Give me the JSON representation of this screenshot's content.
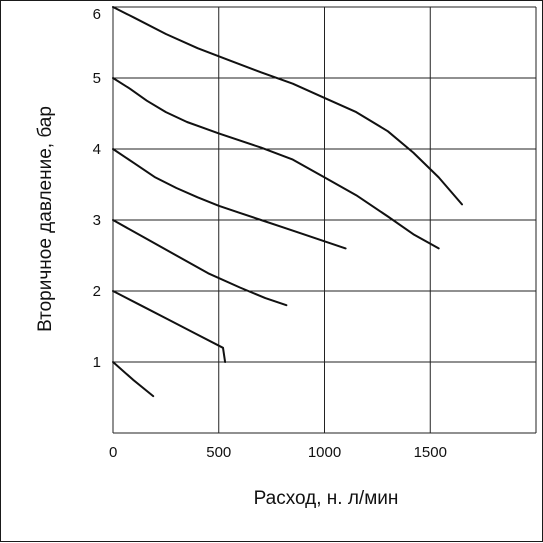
{
  "chart_data": {
    "type": "line",
    "title": "",
    "xlabel": "Расход, н. л/мин",
    "ylabel": "Вторичное давление, бар",
    "xlim": [
      0,
      2000
    ],
    "ylim": [
      0,
      6
    ],
    "grid": true,
    "x_ticks": [
      {
        "value": 0,
        "label": "0"
      },
      {
        "value": 500,
        "label": "500"
      },
      {
        "value": 1000,
        "label": "1000"
      },
      {
        "value": 1500,
        "label": "1500"
      }
    ],
    "y_ticks": [
      {
        "value": 1,
        "label": "1"
      },
      {
        "value": 2,
        "label": "2"
      },
      {
        "value": 3,
        "label": "3"
      },
      {
        "value": 4,
        "label": "4"
      },
      {
        "value": 5,
        "label": "5"
      },
      {
        "value": 6,
        "label": "6"
      }
    ],
    "series": [
      {
        "points": [
          [
            0,
            1.0
          ],
          [
            95,
            0.75
          ],
          [
            190,
            0.52
          ]
        ]
      },
      {
        "points": [
          [
            0,
            2.0
          ],
          [
            130,
            1.8
          ],
          [
            260,
            1.6
          ],
          [
            390,
            1.4
          ],
          [
            520,
            1.2
          ],
          [
            530,
            1.0
          ]
        ]
      },
      {
        "points": [
          [
            0,
            3.0
          ],
          [
            150,
            2.75
          ],
          [
            300,
            2.5
          ],
          [
            450,
            2.25
          ],
          [
            600,
            2.05
          ],
          [
            720,
            1.9
          ],
          [
            820,
            1.8
          ]
        ]
      },
      {
        "points": [
          [
            0,
            4.0
          ],
          [
            100,
            3.8
          ],
          [
            200,
            3.6
          ],
          [
            300,
            3.45
          ],
          [
            400,
            3.32
          ],
          [
            500,
            3.2
          ],
          [
            600,
            3.1
          ],
          [
            700,
            3.0
          ],
          [
            800,
            2.9
          ],
          [
            900,
            2.8
          ],
          [
            1000,
            2.7
          ],
          [
            1100,
            2.6
          ]
        ]
      },
      {
        "points": [
          [
            0,
            5.0
          ],
          [
            80,
            4.85
          ],
          [
            160,
            4.68
          ],
          [
            250,
            4.52
          ],
          [
            350,
            4.38
          ],
          [
            500,
            4.22
          ],
          [
            700,
            4.02
          ],
          [
            850,
            3.85
          ],
          [
            1000,
            3.6
          ],
          [
            1150,
            3.35
          ],
          [
            1300,
            3.05
          ],
          [
            1420,
            2.8
          ],
          [
            1540,
            2.6
          ]
        ]
      },
      {
        "points": [
          [
            0,
            6.0
          ],
          [
            100,
            5.85
          ],
          [
            250,
            5.62
          ],
          [
            400,
            5.42
          ],
          [
            550,
            5.25
          ],
          [
            700,
            5.08
          ],
          [
            850,
            4.92
          ],
          [
            1000,
            4.72
          ],
          [
            1150,
            4.52
          ],
          [
            1300,
            4.25
          ],
          [
            1420,
            3.95
          ],
          [
            1540,
            3.6
          ],
          [
            1650,
            3.22
          ]
        ]
      }
    ]
  }
}
